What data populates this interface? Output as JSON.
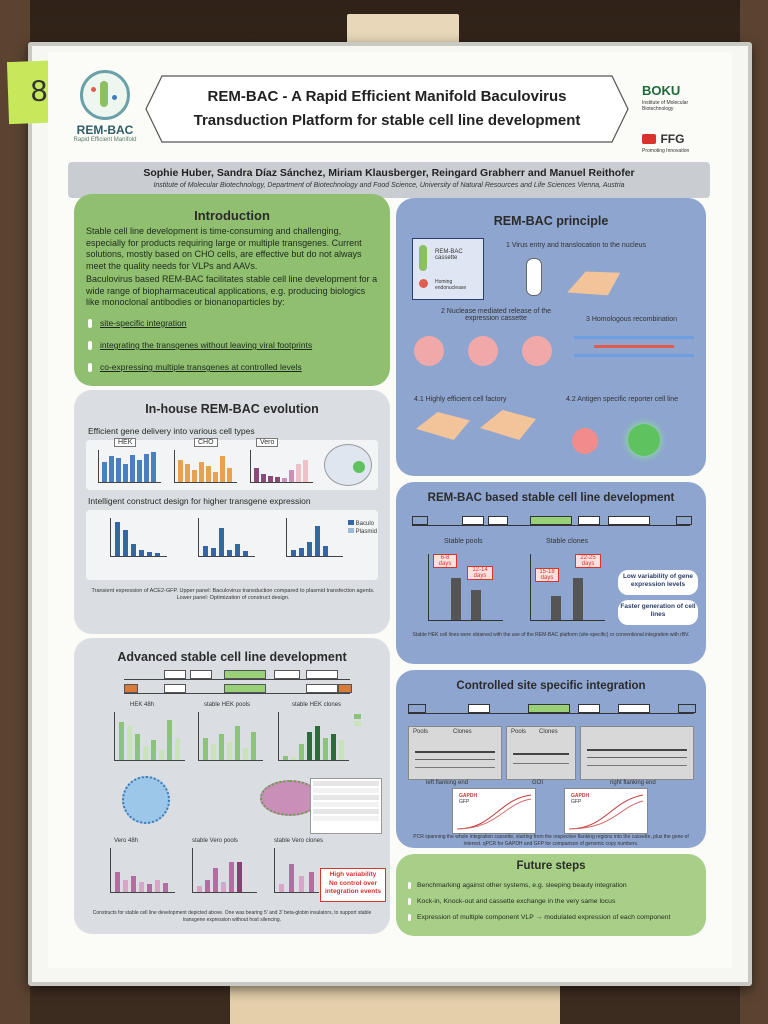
{
  "sticky_note": "8",
  "header": {
    "logo_text": "REM-BAC",
    "logo_subtitle": "Rapid Efficient Manifold",
    "title_line1": "REM-BAC - A Rapid Efficient Manifold Baculovirus",
    "title_line2": "Transduction Platform for stable cell line development",
    "boku": "BOKU",
    "boku_sub": "Institute of Molecular Biotechnology",
    "ffg": "FFG",
    "ffg_sub": "Promoting Innovation"
  },
  "authors": "Sophie Huber, Sandra Díaz Sánchez, Miriam Klausberger, Reingard Grabherr and Manuel Reithofer",
  "affiliation": "Institute of Molecular Biotechnology, Department of Biotechnology and Food Science, University of Natural Resources and Life Sciences Vienna, Austria",
  "introduction": {
    "title": "Introduction",
    "p1": "Stable cell line development is time-consuming and challenging, especially for products requiring large or multiple transgenes. Current solutions, mostly based on CHO cells, are effective but do not always meet the quality needs for VLPs and AAVs.",
    "p2": "Baculovirus based REM-BAC facilitates stable cell line development for a wide range of biopharmaceutical applications, e.g. producing biologics like monoclonal antibodies or bionanoparticles by:",
    "bullets": [
      "site-specific integration",
      "integrating the transgenes without leaving viral footprints",
      "co-expressing multiple transgenes at controlled levels"
    ]
  },
  "evolution": {
    "title": "In-house REM-BAC evolution",
    "sub1": "Efficient gene delivery into various cell types",
    "cells": [
      "HEK",
      "CHO",
      "Vero"
    ],
    "sub2": "Intelligent construct design for higher transgene expression",
    "legend": [
      "Baculo",
      "Plasmid"
    ],
    "caption": "Transient expression of ACE2-GFP. Upper panel: Baculovirus transduction compared to plasmid transfection agents. Lower panel: Optimization of construct design."
  },
  "advanced": {
    "title": "Advanced stable cell line development",
    "charts_top": [
      "HEK 48h",
      "stable HEK pools",
      "stable HEK clones"
    ],
    "charts_bottom": [
      "Vero 48h",
      "stable Vero pools",
      "stable Vero clones"
    ],
    "highlight_line1": "High variability",
    "highlight_line2": "No control over",
    "highlight_line3": "integration events",
    "caption": "Constructs for stable cell line development depicted above. One was bearing 5' and 3' beta-globin insulators, to support stable transgene expression without host silencing."
  },
  "principle": {
    "title": "REM-BAC principle",
    "step1": "1 Virus entry and translocation to the nucleus",
    "step2": "2 Nuclease mediated release of the expression cassette",
    "step3": "3 Homologous recombination",
    "step41": "4.1 Highly efficient cell factory",
    "step42": "4.2 Antigen specific reporter cell line",
    "cassette_label": "REM-BAC cassette",
    "homing_label": "Homing endonuclease"
  },
  "stable_dev": {
    "title": "REM-BAC based stable cell line development",
    "pools": "Stable pools",
    "clones": "Stable clones",
    "days_a": "6-8 days",
    "days_b": "12-14 days",
    "days_c": "15-18 days",
    "days_d": "22-25 days",
    "note1": "Low variability of gene expression levels",
    "note2": "Faster generation of cell lines",
    "caption": "Stable HEK cell lines were obtained with the use of the REM-BAC platform (site-specific) or conventional integration with rBV."
  },
  "site_specific": {
    "title": "Controlled site specific integration",
    "gel_labels": [
      "Pools",
      "Clones",
      "Pools",
      "Clones"
    ],
    "flank_left": "left flanking end",
    "flank_mid": "GOI",
    "flank_right": "right flanking end",
    "qpcr_labels": [
      "GAPDH",
      "GFP"
    ],
    "caption": "PCR spanning the whole integration cassette, starting from the respective flanking regions into the cassette, plus the gene of interest. qPCR for GAPDH and GFP for comparison of genomic copy numbers."
  },
  "future": {
    "title": "Future steps",
    "items": [
      "Benchmarking against other systems, e.g. sleeping beauty integration",
      "Kock-in, Knock-out and cassette exchange in the very same locus",
      "Expression of multiple component VLP → modulated expression of each component"
    ]
  },
  "cassette_parts": [
    "Hyg R",
    "Prom.",
    "Intr.",
    "ACE2-eGFP",
    "WPRE",
    "Poly A",
    "G418 R"
  ],
  "colors": {
    "green": "#8fbf6f",
    "blue": "#8ea5cf",
    "grey": "#dadde2",
    "accent_red": "#d9342b"
  }
}
